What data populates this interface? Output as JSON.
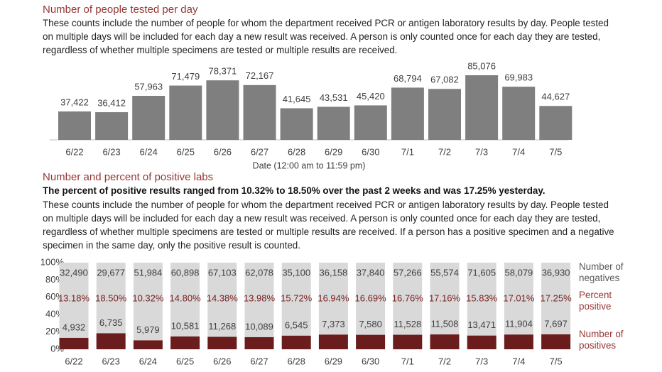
{
  "chart_data": [
    {
      "type": "bar",
      "title": "Number of people tested per day",
      "description": "These counts include the number of people for whom the department received PCR or antigen laboratory results by day. People tested on multiple days will be included for each day a new result was received. A person is only counted once for each day they are tested, regardless of whether multiple specimens are tested or multiple results are received.",
      "xlabel": "Date (12:00 am to 11:59 pm)",
      "categories": [
        "6/22",
        "6/23",
        "6/24",
        "6/25",
        "6/26",
        "6/27",
        "6/28",
        "6/29",
        "6/30",
        "7/1",
        "7/2",
        "7/3",
        "7/4",
        "7/5"
      ],
      "values": [
        37422,
        36412,
        57963,
        71479,
        78371,
        72167,
        41645,
        43531,
        45420,
        68794,
        67082,
        85076,
        69983,
        44627
      ],
      "value_labels": [
        "37,422",
        "36,412",
        "57,963",
        "71,479",
        "78,371",
        "72,167",
        "41,645",
        "43,531",
        "45,420",
        "68,794",
        "67,082",
        "85,076",
        "69,983",
        "44,627"
      ],
      "color": "#7f7f7f"
    },
    {
      "type": "stacked-percent-bar",
      "title": "Number and percent of positive labs",
      "subtitle": "The percent of positive results ranged from 10.32% to 18.50% over the past 2 weeks and was 17.25% yesterday.",
      "description": "These counts include the number of people for whom the department received PCR or antigen laboratory results by day. People tested on multiple days will be included for each day a new result was received. A person is only counted once for each day they are tested, regardless of whether multiple specimens are tested or multiple results are received. If a person has a positive specimen and a negative specimen in the same day, only the positive result is counted.",
      "categories": [
        "6/22",
        "6/23",
        "6/24",
        "6/25",
        "6/26",
        "6/27",
        "6/28",
        "6/29",
        "6/30",
        "7/1",
        "7/2",
        "7/3",
        "7/4",
        "7/5"
      ],
      "ylim": [
        0,
        100
      ],
      "yticks": [
        {
          "value": 0,
          "label": "0%"
        },
        {
          "value": 20,
          "label": "20%"
        },
        {
          "value": 40,
          "label": "40%"
        },
        {
          "value": 60,
          "label": "60%"
        },
        {
          "value": 80,
          "label": "80%"
        },
        {
          "value": 100,
          "label": "100%"
        }
      ],
      "series": [
        {
          "name": "Number of negatives",
          "color": "#d9d9d9",
          "values": [
            32490,
            29677,
            51984,
            60898,
            67103,
            62078,
            35100,
            36158,
            37840,
            57266,
            55574,
            71605,
            58079,
            36930
          ],
          "value_labels": [
            "32,490",
            "29,677",
            "51,984",
            "60,898",
            "67,103",
            "62,078",
            "35,100",
            "36,158",
            "37,840",
            "57,266",
            "55,574",
            "71,605",
            "58,079",
            "36,930"
          ]
        },
        {
          "name": "Percent positive",
          "color": "#7b1f1f",
          "values": [
            13.18,
            18.5,
            10.32,
            14.8,
            14.38,
            13.98,
            15.72,
            16.94,
            16.69,
            16.76,
            17.16,
            15.83,
            17.01,
            17.25
          ],
          "value_labels": [
            "13.18%",
            "18.50%",
            "10.32%",
            "14.80%",
            "14.38%",
            "13.98%",
            "15.72%",
            "16.94%",
            "16.69%",
            "16.76%",
            "17.16%",
            "15.83%",
            "17.01%",
            "17.25%"
          ]
        },
        {
          "name": "Number of positives",
          "color": "#6b1c1c",
          "values": [
            4932,
            6735,
            5979,
            10581,
            11268,
            10089,
            6545,
            7373,
            7580,
            11528,
            11508,
            13471,
            11904,
            7697
          ],
          "value_labels": [
            "4,932",
            "6,735",
            "5,979",
            "10,581",
            "11,268",
            "10,089",
            "6,545",
            "7,373",
            "7,580",
            "11,528",
            "11,508",
            "13,471",
            "11,904",
            "7,697"
          ]
        }
      ]
    }
  ]
}
